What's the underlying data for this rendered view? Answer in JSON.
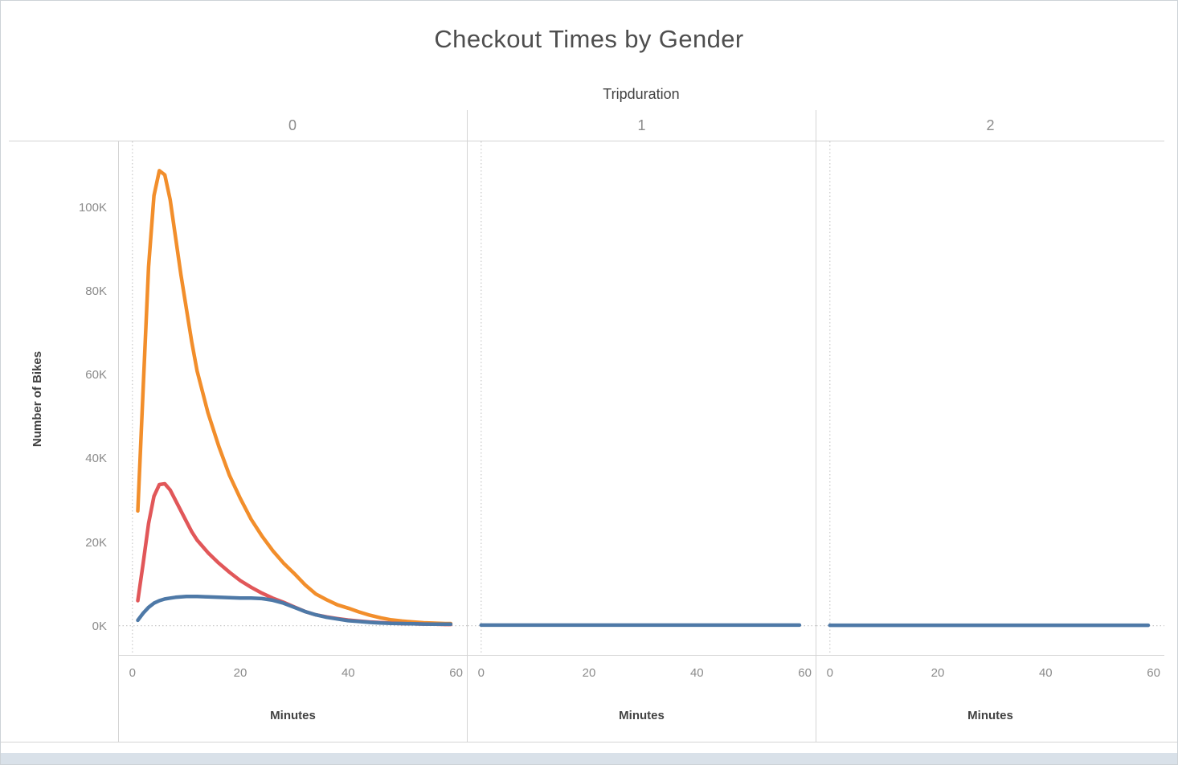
{
  "title": "Checkout Times by Gender",
  "column_field": "Tripduration",
  "y_axis": {
    "title": "Number of Bikes"
  },
  "x_axis": {
    "title": "Minutes"
  },
  "chart_data": {
    "type": "line",
    "title": "Checkout Times by Gender",
    "xlabel": "Minutes",
    "ylabel": "Number of Bikes",
    "y_unit": "thousands of bikes",
    "legend": "none",
    "grid": "dotted zero lines only",
    "xlim": [
      -2.5,
      62
    ],
    "ylim": [
      -7,
      116
    ],
    "x_ticks": [
      0,
      20,
      40,
      60
    ],
    "y_ticks": [
      {
        "value": 0,
        "label": "0K"
      },
      {
        "value": 20,
        "label": "20K"
      },
      {
        "value": 40,
        "label": "40K"
      },
      {
        "value": 60,
        "label": "60K"
      },
      {
        "value": 80,
        "label": "80K"
      },
      {
        "value": 100,
        "label": "100K"
      }
    ],
    "gridline_color": "#c9c9c9",
    "stroke_width": 4.5,
    "colors": {
      "orange": "#f28e2b",
      "red": "#e15759",
      "blue": "#4e79a7"
    },
    "panels": [
      {
        "label": "0",
        "series": [
          {
            "name": "orange",
            "color": "#f28e2b",
            "x": [
              1,
              2,
              3,
              4,
              5,
              6,
              7,
              8,
              9,
              10,
              11,
              12,
              14,
              16,
              18,
              20,
              22,
              24,
              26,
              28,
              30,
              32,
              34,
              36,
              38,
              40,
              42,
              44,
              46,
              48,
              50,
              52,
              54,
              56,
              58,
              59
            ],
            "y": [
              27.5,
              57,
              86,
              103,
              109,
              108,
              102,
              93,
              84,
              76,
              68,
              61,
              51,
              43,
              36,
              30.5,
              25.5,
              21.5,
              18,
              15,
              12.5,
              9.8,
              7.6,
              6.2,
              5,
              4.2,
              3.3,
              2.5,
              1.9,
              1.4,
              1.1,
              0.9,
              0.7,
              0.6,
              0.5,
              0.5
            ]
          },
          {
            "name": "red",
            "color": "#e15759",
            "x": [
              1,
              2,
              3,
              4,
              5,
              6,
              7,
              8,
              9,
              10,
              11,
              12,
              14,
              16,
              18,
              20,
              22,
              24,
              26,
              28,
              30,
              32,
              34,
              36,
              38,
              40,
              42,
              44,
              46,
              48,
              50,
              52,
              54,
              56,
              58,
              59
            ],
            "y": [
              6,
              15,
              24.5,
              31,
              33.8,
              34,
              32.5,
              30,
              27.5,
              25,
              22.5,
              20.5,
              17.5,
              15,
              12.8,
              10.8,
              9.2,
              7.8,
              6.6,
              5.6,
              4.5,
              3.4,
              2.6,
              2.1,
              1.7,
              1.35,
              1.1,
              0.9,
              0.75,
              0.6,
              0.5,
              0.45,
              0.4,
              0.35,
              0.3,
              0.3
            ]
          },
          {
            "name": "blue",
            "color": "#4e79a7",
            "x": [
              1,
              2,
              3,
              4,
              5,
              6,
              7,
              8,
              9,
              10,
              11,
              12,
              14,
              16,
              18,
              20,
              22,
              24,
              26,
              28,
              30,
              32,
              34,
              36,
              38,
              40,
              42,
              44,
              46,
              48,
              50,
              52,
              54,
              56,
              58,
              59
            ],
            "y": [
              1.3,
              3,
              4.4,
              5.4,
              6,
              6.4,
              6.6,
              6.8,
              6.9,
              7,
              7,
              7,
              6.9,
              6.8,
              6.7,
              6.6,
              6.6,
              6.5,
              6.1,
              5.4,
              4.4,
              3.4,
              2.6,
              2,
              1.6,
              1.2,
              1,
              0.8,
              0.65,
              0.55,
              0.5,
              0.45,
              0.4,
              0.38,
              0.35,
              0.35
            ]
          }
        ]
      },
      {
        "label": "1",
        "series": [
          {
            "name": "blue",
            "color": "#4e79a7",
            "x": [
              0,
              2,
              5,
              10,
              15,
              20,
              25,
              30,
              35,
              40,
              45,
              50,
              55,
              59
            ],
            "y": [
              0.15,
              0.15,
              0.15,
              0.15,
              0.15,
              0.15,
              0.15,
              0.15,
              0.15,
              0.15,
              0.15,
              0.15,
              0.15,
              0.15
            ]
          }
        ]
      },
      {
        "label": "2",
        "series": [
          {
            "name": "blue",
            "color": "#4e79a7",
            "x": [
              0,
              2,
              5,
              10,
              15,
              20,
              25,
              30,
              35,
              40,
              45,
              50,
              55,
              59
            ],
            "y": [
              0.1,
              0.1,
              0.1,
              0.1,
              0.1,
              0.1,
              0.1,
              0.1,
              0.1,
              0.1,
              0.1,
              0.1,
              0.1,
              0.1
            ]
          }
        ]
      }
    ]
  }
}
